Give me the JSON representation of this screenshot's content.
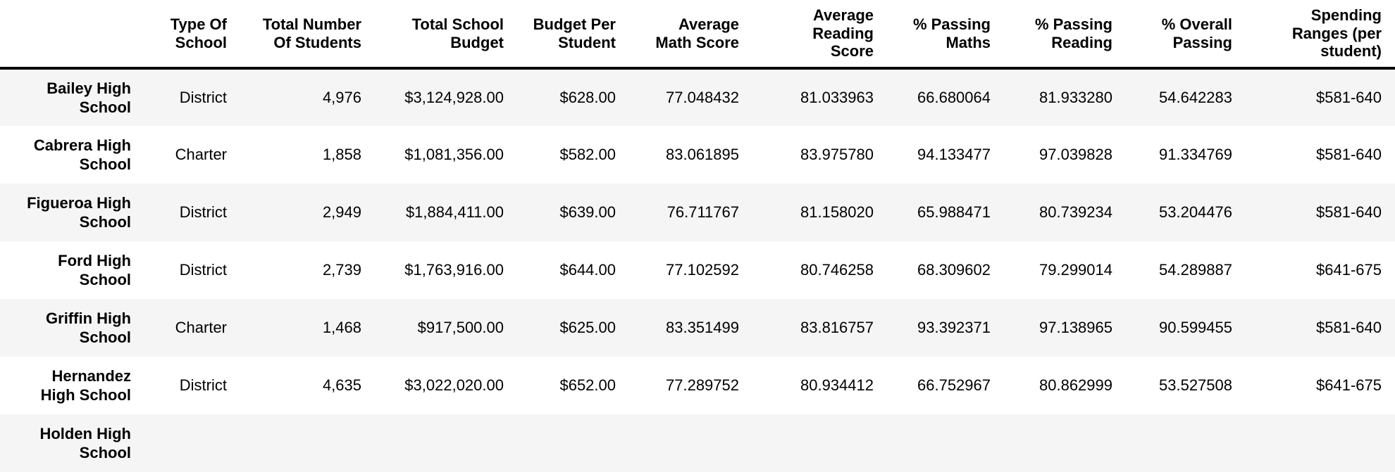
{
  "table": {
    "index_header": "",
    "headers": [
      "Type Of\nSchool",
      "Total Number\nOf Students",
      "Total School\nBudget",
      "Budget Per\nStudent",
      "Average\nMath Score",
      "Average\nReading\nScore",
      "% Passing\nMaths",
      "% Passing\nReading",
      "% Overall\nPassing",
      "Spending\nRanges (per\nstudent)"
    ],
    "rows": [
      {
        "name": "Bailey High\nSchool",
        "cells": [
          "District",
          "4,976",
          "$3,124,928.00",
          "$628.00",
          "77.048432",
          "81.033963",
          "66.680064",
          "81.933280",
          "54.642283",
          "$581-640"
        ]
      },
      {
        "name": "Cabrera High\nSchool",
        "cells": [
          "Charter",
          "1,858",
          "$1,081,356.00",
          "$582.00",
          "83.061895",
          "83.975780",
          "94.133477",
          "97.039828",
          "91.334769",
          "$581-640"
        ]
      },
      {
        "name": "Figueroa High\nSchool",
        "cells": [
          "District",
          "2,949",
          "$1,884,411.00",
          "$639.00",
          "76.711767",
          "81.158020",
          "65.988471",
          "80.739234",
          "53.204476",
          "$581-640"
        ]
      },
      {
        "name": "Ford High\nSchool",
        "cells": [
          "District",
          "2,739",
          "$1,763,916.00",
          "$644.00",
          "77.102592",
          "80.746258",
          "68.309602",
          "79.299014",
          "54.289887",
          "$641-675"
        ]
      },
      {
        "name": "Griffin High\nSchool",
        "cells": [
          "Charter",
          "1,468",
          "$917,500.00",
          "$625.00",
          "83.351499",
          "83.816757",
          "93.392371",
          "97.138965",
          "90.599455",
          "$581-640"
        ]
      },
      {
        "name": "Hernandez\nHigh School",
        "cells": [
          "District",
          "4,635",
          "$3,022,020.00",
          "$652.00",
          "77.289752",
          "80.934412",
          "66.752967",
          "80.862999",
          "53.527508",
          "$641-675"
        ]
      },
      {
        "name": "Holden High\nSchool",
        "cells": [
          "",
          "",
          "",
          "",
          "",
          "",
          "",
          "",
          "",
          ""
        ]
      }
    ]
  },
  "colors": {
    "stripe": "#f5f5f5",
    "background": "#ffffff",
    "text": "#000000",
    "header_rule": "#000000"
  }
}
